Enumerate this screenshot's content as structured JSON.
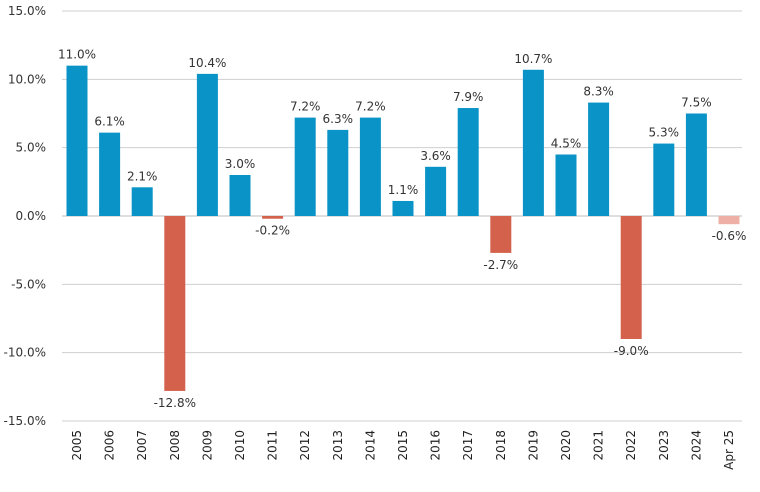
{
  "chart_data": {
    "type": "bar",
    "title": "",
    "xlabel": "",
    "ylabel": "",
    "ylim": [
      -15,
      15
    ],
    "yticks": [
      15,
      10,
      5,
      0,
      -5,
      -10,
      -15
    ],
    "ytick_labels": [
      "15.0%",
      "10.0%",
      "5.0%",
      "0.0%",
      "-5.0%",
      "-10.0%",
      "-15.0%"
    ],
    "grid": true,
    "categories": [
      "2005",
      "2006",
      "2007",
      "2008",
      "2009",
      "2010",
      "2011",
      "2012",
      "2013",
      "2014",
      "2015",
      "2016",
      "2017",
      "2018",
      "2019",
      "2020",
      "2021",
      "2022",
      "2023",
      "2024",
      "Apr 25"
    ],
    "values": [
      11.0,
      6.1,
      2.1,
      -12.8,
      10.4,
      3.0,
      -0.2,
      7.2,
      6.3,
      7.2,
      1.1,
      3.6,
      7.9,
      -2.7,
      10.7,
      4.5,
      8.3,
      -9.0,
      5.3,
      7.5,
      -0.6
    ],
    "data_labels": [
      "11.0%",
      "6.1%",
      "2.1%",
      "-12.8%",
      "10.4%",
      "3.0%",
      "-0.2%",
      "7.2%",
      "6.3%",
      "7.2%",
      "1.1%",
      "3.6%",
      "7.9%",
      "-2.7%",
      "10.7%",
      "4.5%",
      "8.3%",
      "-9.0%",
      "5.3%",
      "7.5%",
      "-0.6%"
    ],
    "colors": {
      "positive": "#0a93c6",
      "negative": "#d4614b",
      "partial_year_negative": "#eeb0a6"
    }
  }
}
